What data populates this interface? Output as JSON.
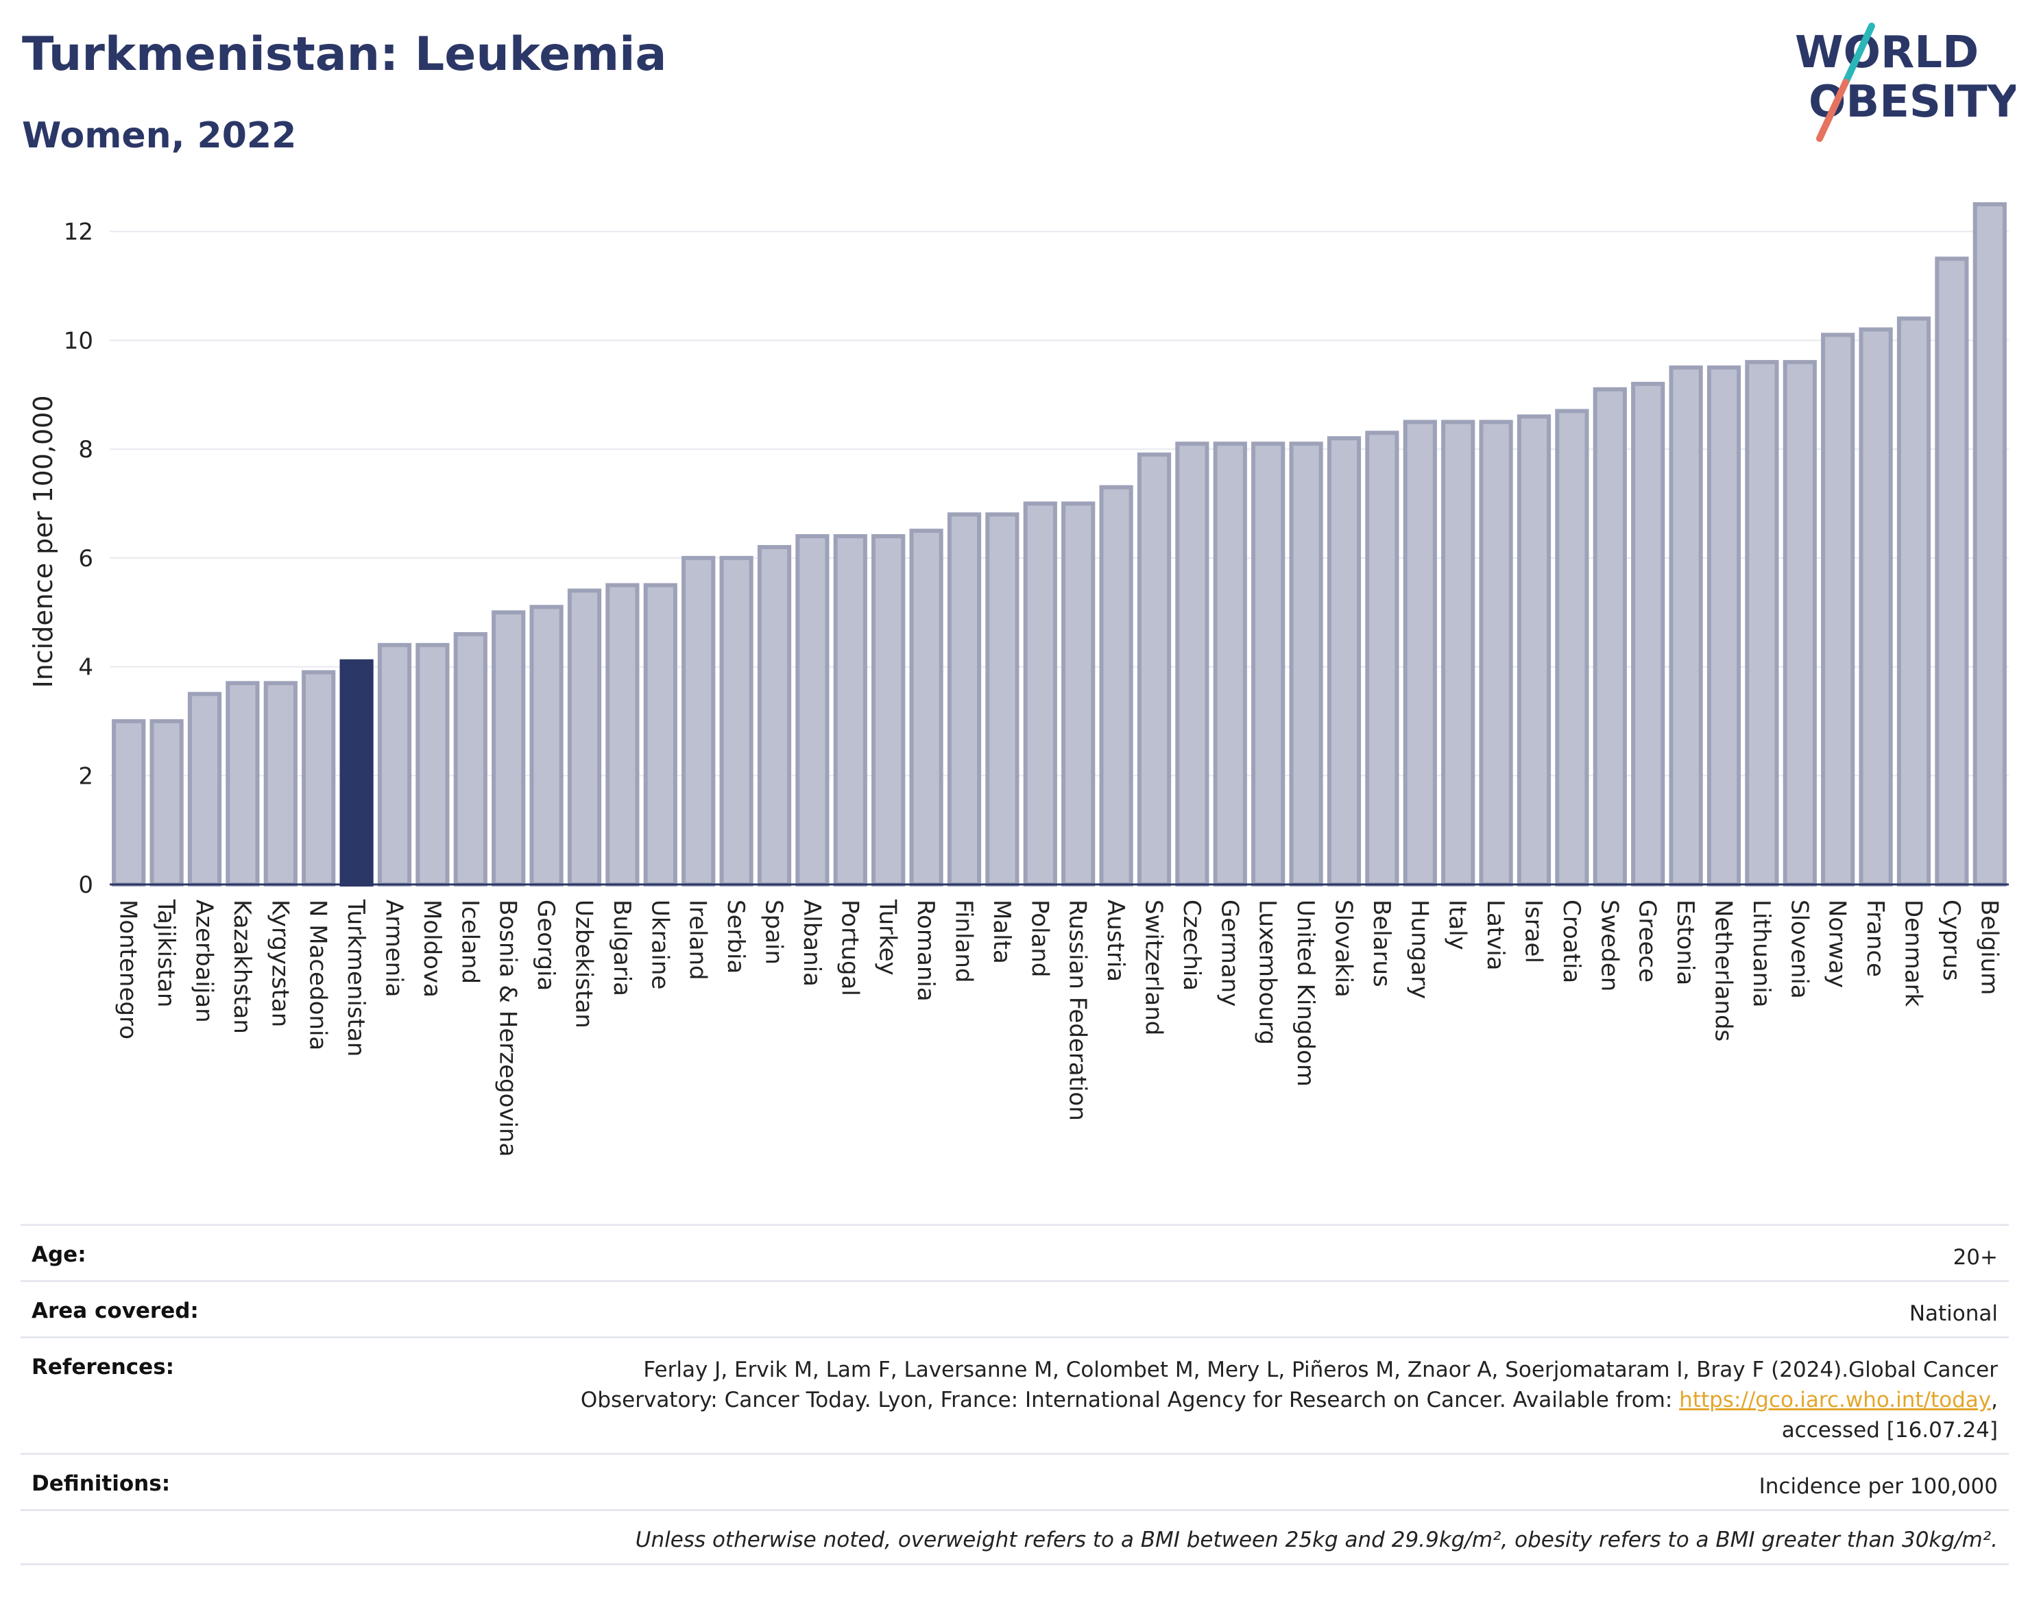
{
  "header": {
    "title": "Turkmenistan: Leukemia",
    "subtitle": "Women, 2022",
    "logo_line1": "WORLD",
    "logo_line2": "OBESITY"
  },
  "colors": {
    "bar": "#bcc0d0",
    "bar_edge": "#9da2b9",
    "highlight": "#2b3766",
    "text": "#2b3766",
    "link": "#e3a62b",
    "logo_teal": "#2bb6b8",
    "logo_coral": "#e5735f"
  },
  "chart_data": {
    "type": "bar",
    "title": "Turkmenistan: Leukemia",
    "subtitle": "Women, 2022",
    "ylabel": "Incidence per 100,000",
    "xlabel": "",
    "ylim": [
      0,
      12.6
    ],
    "yticks": [
      0,
      2,
      4,
      6,
      8,
      10,
      12
    ],
    "grid": true,
    "highlight": "Turkmenistan",
    "categories": [
      "Montenegro",
      "Tajikistan",
      "Azerbaijan",
      "Kazakhstan",
      "Kyrgyzstan",
      "N Macedonia",
      "Turkmenistan",
      "Armenia",
      "Moldova",
      "Iceland",
      "Bosnia & Herzegovina",
      "Georgia",
      "Uzbekistan",
      "Bulgaria",
      "Ukraine",
      "Ireland",
      "Serbia",
      "Spain",
      "Albania",
      "Portugal",
      "Turkey",
      "Romania",
      "Finland",
      "Malta",
      "Poland",
      "Russian Federation",
      "Austria",
      "Switzerland",
      "Czechia",
      "Germany",
      "Luxembourg",
      "United Kingdom",
      "Slovakia",
      "Belarus",
      "Hungary",
      "Italy",
      "Latvia",
      "Israel",
      "Croatia",
      "Sweden",
      "Greece",
      "Estonia",
      "Netherlands",
      "Lithuania",
      "Slovenia",
      "Norway",
      "France",
      "Denmark",
      "Cyprus",
      "Belgium"
    ],
    "values": [
      3.0,
      3.0,
      3.5,
      3.7,
      3.7,
      3.9,
      4.1,
      4.4,
      4.4,
      4.6,
      5.0,
      5.1,
      5.4,
      5.5,
      5.5,
      6.0,
      6.0,
      6.2,
      6.4,
      6.4,
      6.4,
      6.5,
      6.8,
      6.8,
      7.0,
      7.0,
      7.3,
      7.9,
      8.1,
      8.1,
      8.1,
      8.1,
      8.2,
      8.3,
      8.5,
      8.5,
      8.5,
      8.6,
      8.7,
      9.1,
      9.2,
      9.5,
      9.5,
      9.6,
      9.6,
      10.1,
      10.2,
      10.4,
      11.5,
      12.5
    ]
  },
  "meta": {
    "age_label": "Age:",
    "age_value": "20+",
    "area_label": "Area covered:",
    "area_value": "National",
    "references_label": "References:",
    "references_text": "Ferlay J, Ervik M, Lam F, Laversanne M, Colombet M, Mery L, Piñeros M, Znaor A, Soerjomataram I, Bray F (2024).Global Cancer Observatory: Cancer Today. Lyon, France: International Agency for Research on Cancer. Available from: ",
    "references_link": "https://gco.iarc.who.int/today",
    "references_suffix": ", accessed [16.07.24]",
    "definitions_label": "Definitions:",
    "definitions_value": "Incidence per 100,000",
    "note": "Unless otherwise noted, overweight refers to a BMI between 25kg and 29.9kg/m², obesity refers to a BMI greater than 30kg/m²."
  }
}
